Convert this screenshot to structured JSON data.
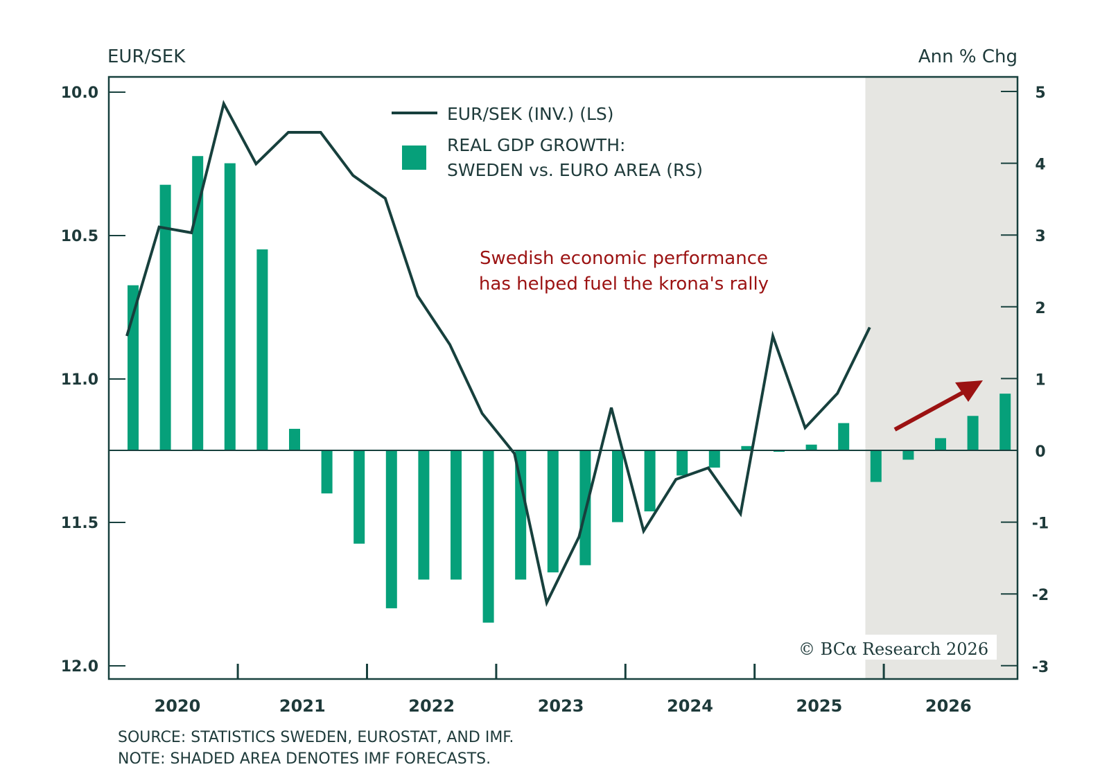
{
  "chart_data": {
    "type": "bar+line",
    "title": "",
    "left_axis": {
      "label": "EUR/SEK",
      "inverted": true,
      "ticks": [
        "10.0",
        "10.5",
        "11.0",
        "11.5",
        "12.0"
      ],
      "range": [
        10.0,
        12.0
      ]
    },
    "right_axis": {
      "label": "Ann % Chg",
      "ticks": [
        "5",
        "4",
        "3",
        "2",
        "1",
        "0",
        "-1",
        "-2",
        "-3"
      ],
      "range": [
        -3,
        5
      ]
    },
    "x_axis": {
      "years": [
        "2020",
        "2021",
        "2022",
        "2023",
        "2024",
        "2025",
        "2026"
      ],
      "frequency": "quarterly"
    },
    "quarters": [
      "2020Q1",
      "2020Q2",
      "2020Q3",
      "2020Q4",
      "2021Q1",
      "2021Q2",
      "2021Q3",
      "2021Q4",
      "2022Q1",
      "2022Q2",
      "2022Q3",
      "2022Q4",
      "2023Q1",
      "2023Q2",
      "2023Q3",
      "2023Q4",
      "2024Q1",
      "2024Q2",
      "2024Q3",
      "2024Q4",
      "2025Q1",
      "2025Q2",
      "2025Q3",
      "2025Q4",
      "2026Q1",
      "2026Q2",
      "2026Q3",
      "2026Q4"
    ],
    "series": [
      {
        "name": "EUR/SEK (INV.) (LS)",
        "type": "line",
        "axis": "left",
        "color": "#17403d",
        "values": [
          10.85,
          10.47,
          10.49,
          10.04,
          10.25,
          10.14,
          10.14,
          10.29,
          10.37,
          10.71,
          10.88,
          11.12,
          11.26,
          11.78,
          11.55,
          11.1,
          11.53,
          11.35,
          11.31,
          11.47,
          10.85,
          11.17,
          11.05,
          10.82
        ]
      },
      {
        "name": "REAL GDP GROWTH: SWEDEN vs. EURO AREA (RS)",
        "type": "bar",
        "axis": "right",
        "color": "#06a07a",
        "values": [
          2.3,
          3.7,
          4.1,
          4.0,
          2.8,
          0.3,
          -0.6,
          -1.3,
          -2.2,
          -1.8,
          -1.8,
          -2.4,
          -1.8,
          -1.7,
          -1.6,
          -1.0,
          -0.85,
          -0.35,
          -0.24,
          0.06,
          -0.02,
          0.08,
          0.38,
          -0.44,
          -0.13,
          0.17,
          0.48,
          0.79
        ]
      }
    ],
    "forecast_shading": {
      "start": "2025Q4",
      "end": "2026Q4",
      "color": "#e6e6e2",
      "meaning": "IMF forecasts"
    },
    "legend": {
      "placement": "top-center",
      "entries": [
        {
          "label": "EUR/SEK (INV.) (LS)",
          "symbol": "line"
        },
        {
          "label_lines": [
            "REAL GDP GROWTH:",
            "SWEDEN vs. EURO AREA (RS)"
          ],
          "symbol": "square"
        }
      ]
    },
    "annotation": {
      "lines": [
        "Swedish economic performance",
        "has helped fuel the krona's rally"
      ],
      "color": "#9b1212",
      "arrow": "up-right"
    }
  },
  "footnotes": {
    "source": "SOURCE: STATISTICS SWEDEN, EUROSTAT, AND IMF.",
    "note": "NOTE: SHADED AREA DENOTES IMF FORECASTS."
  },
  "copyright": "© BCα Research 2026"
}
